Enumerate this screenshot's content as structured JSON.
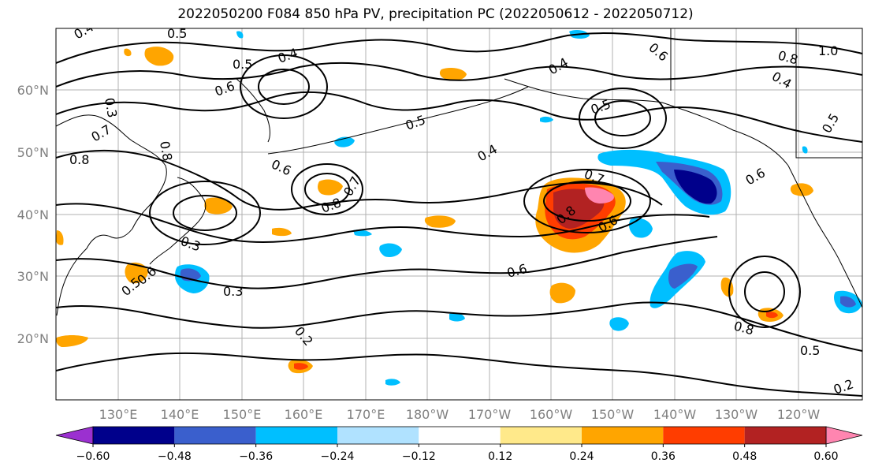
{
  "title": "2022050200 F084 850 hPa PV, precipitation PC (2022050612 - 2022050712)",
  "latitude_labels": [
    "60°N",
    "50°N",
    "40°N",
    "30°N",
    "20°N"
  ],
  "longitude_labels": [
    "130°E",
    "140°E",
    "150°E",
    "160°E",
    "170°E",
    "180°W",
    "170°W",
    "160°W",
    "150°W",
    "140°W",
    "130°W",
    "120°W"
  ],
  "colorbar": {
    "tick_labels": [
      "−0.60",
      "−0.48",
      "−0.36",
      "−0.24",
      "−0.12",
      "0.12",
      "0.24",
      "0.36",
      "0.48",
      "0.60"
    ],
    "colors": [
      "#9b30d0",
      "#00008b",
      "#3a5fcd",
      "#00bfff",
      "#b0e2ff",
      "#ffffff",
      "#ffe98a",
      "#ffa500",
      "#ff3d00",
      "#b22222",
      "#ff85b0"
    ]
  },
  "contour_labels": [
    "0.4",
    "0.5",
    "0.5",
    "0.4",
    "0.6",
    "0.7",
    "0.8",
    "0.3",
    "0.8",
    "0.6",
    "0.8",
    "0.7",
    "0.3",
    "0.6",
    "0.5",
    "0.3",
    "0.2",
    "0.5",
    "0.4",
    "0.6",
    "0.7",
    "0.8",
    "0.6",
    "0.4",
    "0.5",
    "0.6",
    "0.8",
    "0.4",
    "1.0",
    "0.8",
    "0.6",
    "0.5",
    "0.5",
    "0.2"
  ],
  "shading_colors": {
    "pos_low": "#ffe98a",
    "pos_mid": "#ffa500",
    "pos_high": "#ff3d00",
    "pos_higher": "#b22222",
    "pos_max": "#ff85b0",
    "neg_low": "#b0e2ff",
    "neg_mid": "#00bfff",
    "neg_high": "#3a5fcd",
    "neg_max": "#00008b"
  }
}
